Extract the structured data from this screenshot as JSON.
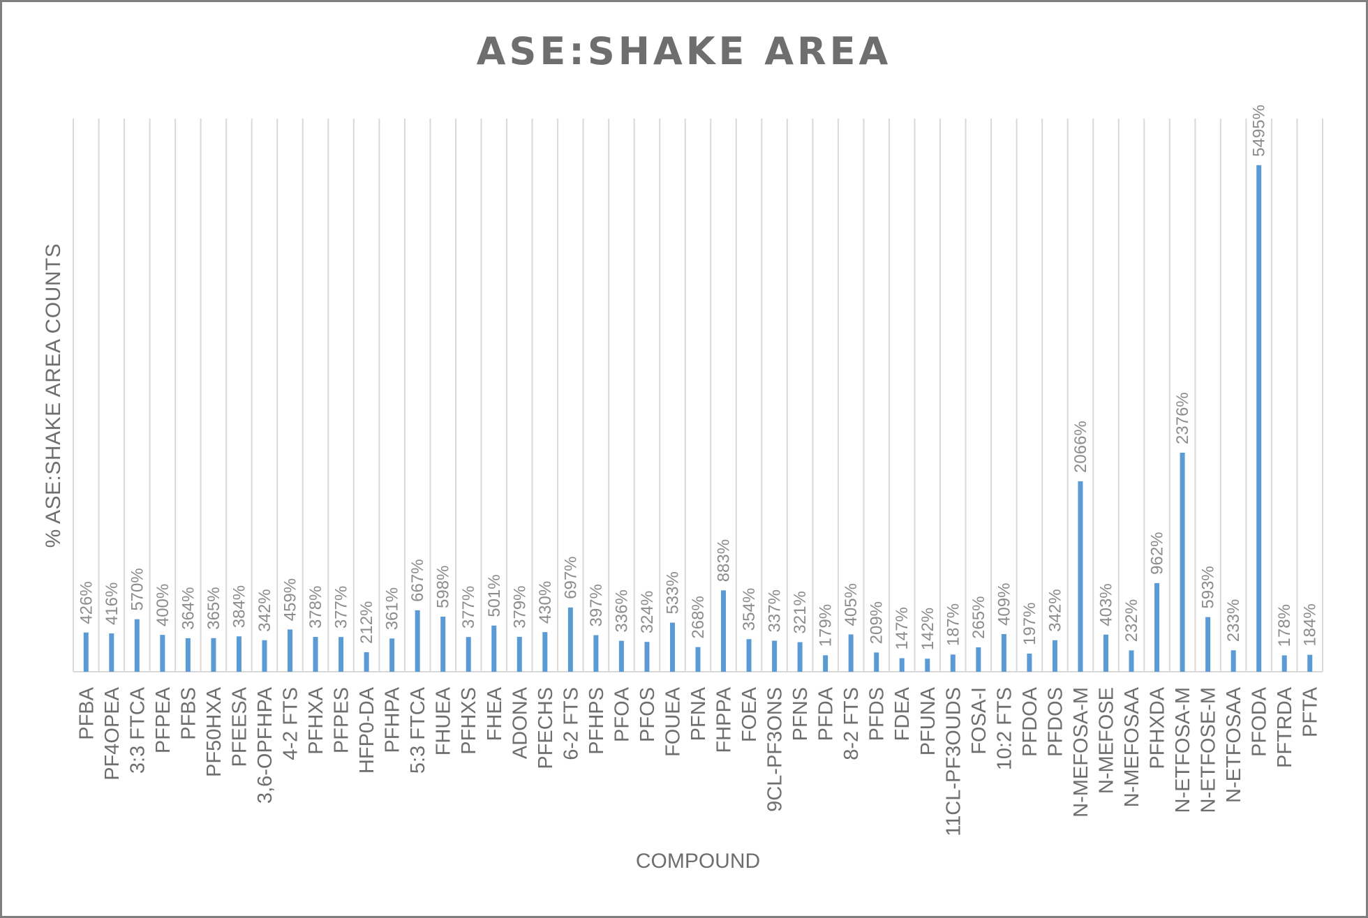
{
  "chart_data": {
    "type": "bar",
    "title": "ASE:SHAKE AREA",
    "xlabel": "COMPOUND",
    "ylabel": "% ASE:SHAKE AREA COUNTS",
    "ylim": [
      0,
      6000
    ],
    "grid": "vertical category gridlines",
    "legend": "none",
    "data_labels": true,
    "bar_color": "#5B9BD5",
    "categories": [
      "PFBA",
      "PF4OPEA",
      "3:3 FTCA",
      "PFPEA",
      "PFBS",
      "PF50HXA",
      "PFEESA",
      "3,6-OPFHPA",
      "4-2 FTS",
      "PFHXA",
      "PFPES",
      "HFP0-DA",
      "PFHPA",
      "5:3 FTCA",
      "FHUEA",
      "PFHXS",
      "FHEA",
      "ADONA",
      "PFECHS",
      "6-2 FTS",
      "PFHPS",
      "PFOA",
      "PFOS",
      "FOUEA",
      "PFNA",
      "FHPPA",
      "FOEA",
      "9CL-PF3ONS",
      "PFNS",
      "PFDA",
      "8-2 FTS",
      "PFDS",
      "FDEA",
      "PFUNA",
      "11CL-PF3OUDS",
      "FOSA-I",
      "10:2 FTS",
      "PFDOA",
      "PFDOS",
      "N-MEFOSA-M",
      "N-MEFOSE",
      "N-MEFOSAA",
      "PFHXDA",
      "N-ETFOSA-M",
      "N-ETFOSE-M",
      "N-ETFOSAA",
      "PFODA",
      "PFTRDA",
      "PFTA"
    ],
    "values": [
      426,
      416,
      570,
      400,
      364,
      365,
      384,
      342,
      459,
      378,
      377,
      212,
      361,
      667,
      598,
      377,
      501,
      379,
      430,
      697,
      397,
      336,
      324,
      533,
      268,
      883,
      354,
      337,
      321,
      179,
      405,
      209,
      147,
      142,
      187,
      265,
      409,
      197,
      342,
      2066,
      403,
      232,
      962,
      2376,
      593,
      233,
      5495,
      178,
      184
    ],
    "value_labels": [
      "426%",
      "416%",
      "570%",
      "400%",
      "364%",
      "365%",
      "384%",
      "342%",
      "459%",
      "378%",
      "377%",
      "212%",
      "361%",
      "667%",
      "598%",
      "377%",
      "501%",
      "379%",
      "430%",
      "697%",
      "397%",
      "336%",
      "324%",
      "533%",
      "268%",
      "883%",
      "354%",
      "337%",
      "321%",
      "179%",
      "405%",
      "209%",
      "147%",
      "142%",
      "187%",
      "265%",
      "409%",
      "197%",
      "342%",
      "2066%",
      "403%",
      "232%",
      "962%",
      "2376%",
      "593%",
      "233%",
      "5495%",
      "178%",
      "184%"
    ]
  }
}
